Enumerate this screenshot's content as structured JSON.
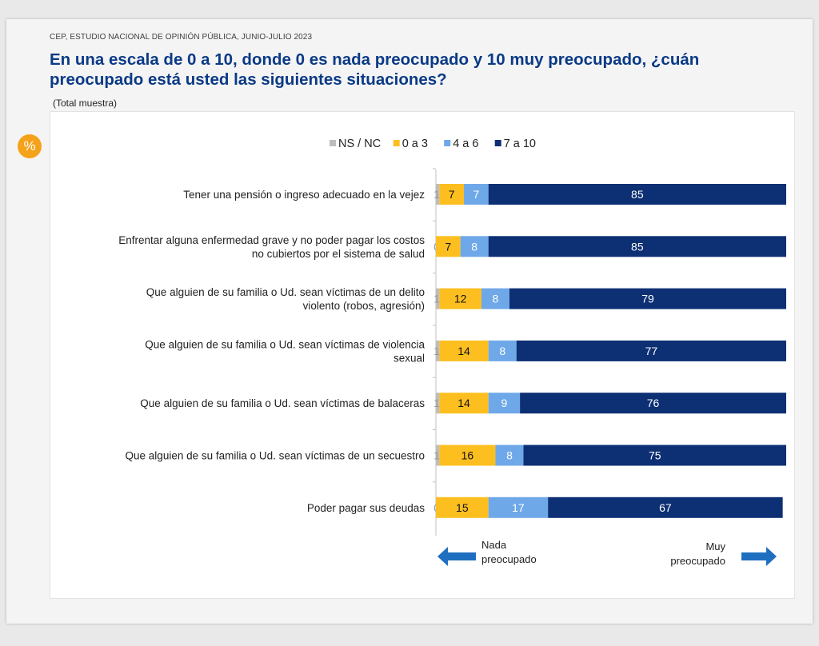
{
  "header": {
    "source": "CEP, ESTUDIO NACIONAL DE OPINIÓN PÚBLICA, JUNIO-JULIO 2023",
    "title": "En una escala de 0 a 10, donde 0 es nada preocupado y 10 muy preocupado, ¿cuán preocupado está usted las siguientes situaciones?",
    "subtitle": "(Total muestra)",
    "badge": "%"
  },
  "chart_data": {
    "type": "bar",
    "orientation": "horizontal",
    "stacked": true,
    "categories": [
      [
        "Tener una pensión o ingreso adecuado en la vejez"
      ],
      [
        "Enfrentar alguna enfermedad grave y no poder pagar los costos",
        "no cubiertos por el sistema de salud"
      ],
      [
        "Que alguien de su familia o Ud. sean víctimas de un delito",
        "violento (robos, agresión)"
      ],
      [
        "Que alguien de su familia o Ud. sean víctimas de violencia",
        "sexual"
      ],
      [
        "Que alguien de su familia o Ud. sean víctimas de balaceras"
      ],
      [
        "Que alguien de su familia o Ud. sean víctimas de un secuestro"
      ],
      [
        "Poder pagar sus deudas"
      ]
    ],
    "series": [
      {
        "name": "NS / NC",
        "color": "#bdbdbd",
        "label_color": "#999999",
        "values": [
          1,
          0,
          1,
          1,
          1,
          1,
          0
        ]
      },
      {
        "name": "0 a 3",
        "color": "#fcbf1f",
        "label_color": "#111111",
        "values": [
          7,
          7,
          12,
          14,
          14,
          16,
          15
        ]
      },
      {
        "name": "4 a 6",
        "color": "#6fa8e8",
        "label_color": "#ffffff",
        "values": [
          7,
          8,
          8,
          8,
          9,
          8,
          17
        ]
      },
      {
        "name": "7 a 10",
        "color": "#0d2f73",
        "label_color": "#ffffff",
        "values": [
          85,
          85,
          79,
          77,
          76,
          75,
          67
        ]
      }
    ],
    "xlim": [
      0,
      100
    ],
    "legend_position": "top",
    "axis_annotations": {
      "left": [
        "Nada",
        "preocupado"
      ],
      "right": [
        "Muy",
        "preocupado"
      ]
    },
    "arrow_color": "#1f6fc0"
  }
}
